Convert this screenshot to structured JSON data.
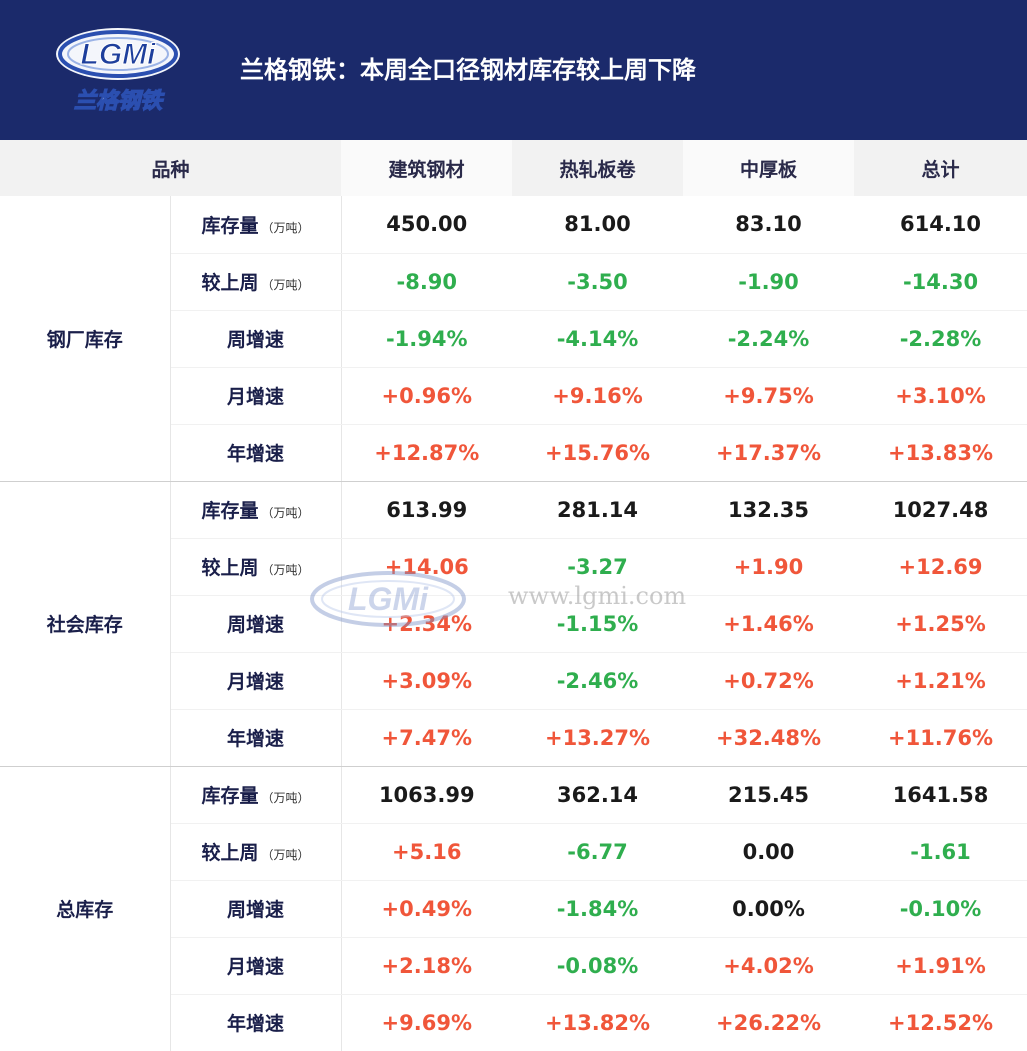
{
  "header": {
    "logo_text": "LGMi",
    "logo_sub": "兰格钢铁",
    "title": "兰格钢铁：本周全口径钢材库存较上周下降"
  },
  "table": {
    "columns": [
      "品种",
      "建筑钢材",
      "热轧板卷",
      "中厚板",
      "总计"
    ],
    "groups": [
      {
        "name": "钢厂库存",
        "rows": [
          {
            "label": "库存量",
            "unit": "（万吨）",
            "values": [
              "450.00",
              "81.00",
              "83.10",
              "614.10"
            ],
            "tones": [
              "neutral",
              "neutral",
              "neutral",
              "neutral"
            ]
          },
          {
            "label": "较上周",
            "unit": "（万吨）",
            "values": [
              "-8.90",
              "-3.50",
              "-1.90",
              "-14.30"
            ],
            "tones": [
              "down",
              "down",
              "down",
              "down"
            ]
          },
          {
            "label": "周增速",
            "unit": "",
            "values": [
              "-1.94%",
              "-4.14%",
              "-2.24%",
              "-2.28%"
            ],
            "tones": [
              "down",
              "down",
              "down",
              "down"
            ]
          },
          {
            "label": "月增速",
            "unit": "",
            "values": [
              "+0.96%",
              "+9.16%",
              "+9.75%",
              "+3.10%"
            ],
            "tones": [
              "up",
              "up",
              "up",
              "up"
            ]
          },
          {
            "label": "年增速",
            "unit": "",
            "values": [
              "+12.87%",
              "+15.76%",
              "+17.37%",
              "+13.83%"
            ],
            "tones": [
              "up",
              "up",
              "up",
              "up"
            ]
          }
        ]
      },
      {
        "name": "社会库存",
        "rows": [
          {
            "label": "库存量",
            "unit": "（万吨）",
            "values": [
              "613.99",
              "281.14",
              "132.35",
              "1027.48"
            ],
            "tones": [
              "neutral",
              "neutral",
              "neutral",
              "neutral"
            ]
          },
          {
            "label": "较上周",
            "unit": "（万吨）",
            "values": [
              "+14.06",
              "-3.27",
              "+1.90",
              "+12.69"
            ],
            "tones": [
              "up",
              "down",
              "up",
              "up"
            ]
          },
          {
            "label": "周增速",
            "unit": "",
            "values": [
              "+2.34%",
              "-1.15%",
              "+1.46%",
              "+1.25%"
            ],
            "tones": [
              "up",
              "down",
              "up",
              "up"
            ]
          },
          {
            "label": "月增速",
            "unit": "",
            "values": [
              "+3.09%",
              "-2.46%",
              "+0.72%",
              "+1.21%"
            ],
            "tones": [
              "up",
              "down",
              "up",
              "up"
            ]
          },
          {
            "label": "年增速",
            "unit": "",
            "values": [
              "+7.47%",
              "+13.27%",
              "+32.48%",
              "+11.76%"
            ],
            "tones": [
              "up",
              "up",
              "up",
              "up"
            ]
          }
        ]
      },
      {
        "name": "总库存",
        "rows": [
          {
            "label": "库存量",
            "unit": "（万吨）",
            "values": [
              "1063.99",
              "362.14",
              "215.45",
              "1641.58"
            ],
            "tones": [
              "neutral",
              "neutral",
              "neutral",
              "neutral"
            ]
          },
          {
            "label": "较上周",
            "unit": "（万吨）",
            "values": [
              "+5.16",
              "-6.77",
              "0.00",
              "-1.61"
            ],
            "tones": [
              "up",
              "down",
              "neutral",
              "down"
            ]
          },
          {
            "label": "周增速",
            "unit": "",
            "values": [
              "+0.49%",
              "-1.84%",
              "0.00%",
              "-0.10%"
            ],
            "tones": [
              "up",
              "down",
              "neutral",
              "down"
            ]
          },
          {
            "label": "月增速",
            "unit": "",
            "values": [
              "+2.18%",
              "-0.08%",
              "+4.02%",
              "+1.91%"
            ],
            "tones": [
              "up",
              "down",
              "up",
              "up"
            ]
          },
          {
            "label": "年增速",
            "unit": "",
            "values": [
              "+9.69%",
              "+13.82%",
              "+26.22%",
              "+12.52%"
            ],
            "tones": [
              "up",
              "up",
              "up",
              "up"
            ]
          }
        ]
      }
    ]
  },
  "watermark": {
    "logo_text": "LGMi",
    "url": "www.lgmi.com"
  },
  "colors": {
    "header_bg": "#1b2a6b",
    "up": "#f0563a",
    "down": "#2fae4e",
    "neutral": "#1a1a1a"
  }
}
